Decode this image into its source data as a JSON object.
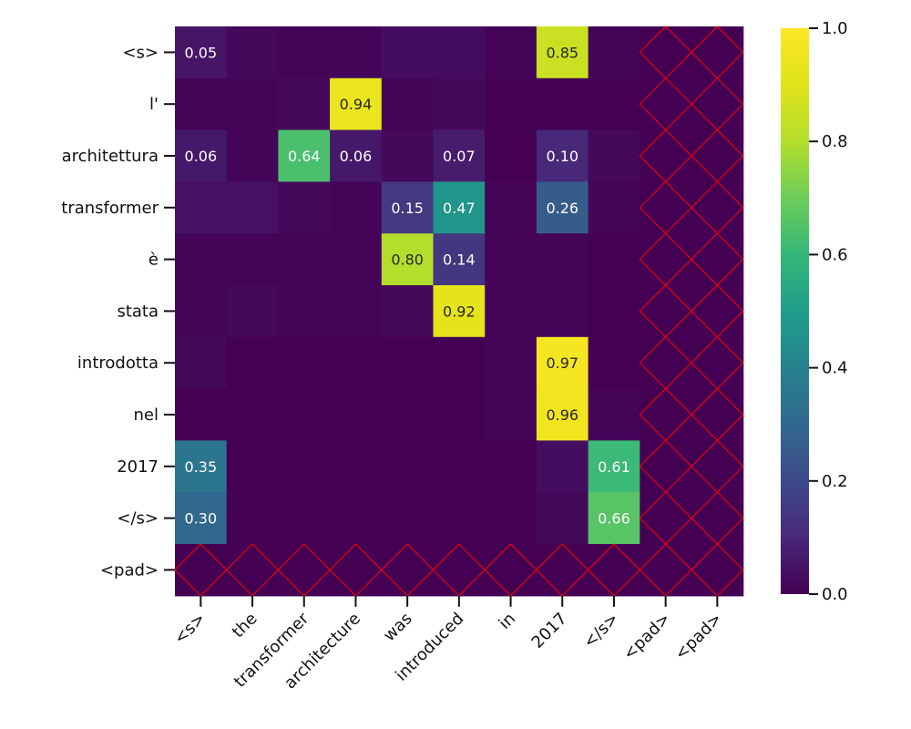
{
  "chart_data": {
    "type": "heatmap",
    "title": "",
    "xlabel": "",
    "ylabel": "",
    "x_tokens": [
      "<s>",
      "the",
      "transformer",
      "architecture",
      "was",
      "introduced",
      "in",
      "2017",
      "</s>",
      "<pad>",
      "<pad>"
    ],
    "y_tokens": [
      "<s>",
      "l'",
      "architettura",
      "transformer",
      "è",
      "stata",
      "introdotta",
      "nel",
      "2017",
      "</s>",
      "<pad>"
    ],
    "values": [
      [
        0.05,
        0.02,
        0.01,
        0.01,
        0.03,
        0.03,
        0.01,
        0.85,
        0.01,
        null,
        null
      ],
      [
        0.01,
        0.01,
        0.02,
        0.94,
        0.01,
        0.02,
        0.0,
        0.0,
        0.0,
        null,
        null
      ],
      [
        0.06,
        0.01,
        0.64,
        0.06,
        0.02,
        0.07,
        0.0,
        0.1,
        0.02,
        null,
        null
      ],
      [
        0.04,
        0.04,
        0.02,
        0.01,
        0.15,
        0.47,
        0.01,
        0.26,
        0.01,
        null,
        null
      ],
      [
        0.01,
        0.01,
        0.01,
        0.01,
        0.8,
        0.14,
        0.01,
        0.01,
        0.0,
        null,
        null
      ],
      [
        0.01,
        0.02,
        0.01,
        0.01,
        0.02,
        0.92,
        0.01,
        0.01,
        0.0,
        null,
        null
      ],
      [
        0.02,
        0.0,
        0.0,
        0.0,
        0.0,
        0.0,
        0.01,
        0.97,
        0.0,
        null,
        null
      ],
      [
        0.0,
        0.0,
        0.0,
        0.0,
        0.0,
        0.0,
        0.01,
        0.96,
        0.01,
        null,
        null
      ],
      [
        0.35,
        0.0,
        0.0,
        0.0,
        0.0,
        0.0,
        0.0,
        0.03,
        0.61,
        null,
        null
      ],
      [
        0.3,
        0.0,
        0.0,
        0.0,
        0.0,
        0.0,
        0.0,
        0.02,
        0.66,
        null,
        null
      ],
      [
        null,
        null,
        null,
        null,
        null,
        null,
        null,
        null,
        null,
        null,
        null
      ]
    ],
    "annotate_threshold": 0.05,
    "masked_marker": "red-x",
    "colormap": "viridis",
    "vmin": 0.0,
    "vmax": 1.0,
    "colorbar_ticks": [
      "0.0",
      "0.2",
      "0.4",
      "0.6",
      "0.8",
      "1.0"
    ],
    "colors": {
      "mask_cross": "#ff0000",
      "mask_fill": "#440154",
      "text_dark": "#262626",
      "text_light": "#ffffff"
    }
  }
}
